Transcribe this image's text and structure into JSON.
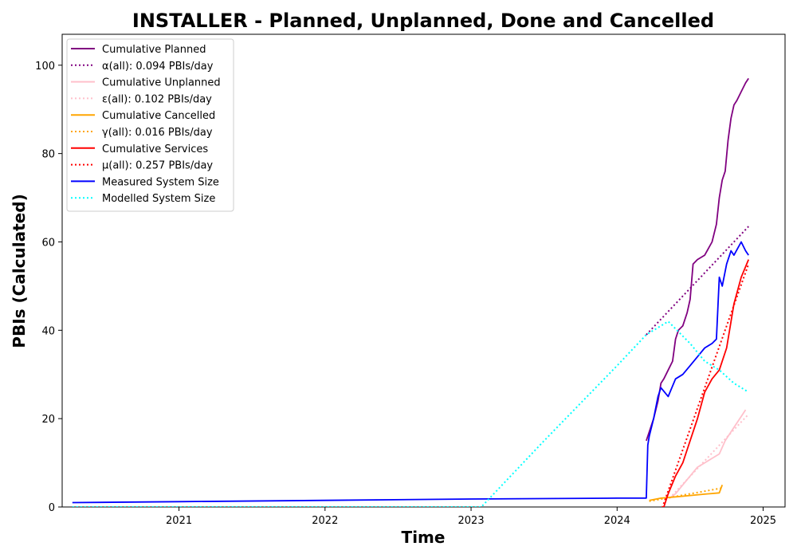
{
  "chart_data": {
    "type": "line",
    "title": "INSTALLER - Planned, Unplanned, Done  and Cancelled",
    "xlabel": "Time",
    "ylabel": "PBIs (Calculated)",
    "xlim": [
      2020.2,
      2025.15
    ],
    "ylim": [
      0,
      107
    ],
    "x_ticks": [
      2021,
      2022,
      2023,
      2024,
      2025
    ],
    "x_tick_labels": [
      "2021",
      "2022",
      "2023",
      "2024",
      "2025"
    ],
    "y_ticks": [
      0,
      20,
      40,
      60,
      80,
      100
    ],
    "y_tick_labels": [
      "0",
      "20",
      "40",
      "60",
      "80",
      "100"
    ],
    "grid": false,
    "legend_position": "top-left",
    "series": [
      {
        "name": "Cumulative Planned",
        "color": "#800080",
        "style": "solid",
        "x": [
          2024.2,
          2024.22,
          2024.25,
          2024.28,
          2024.3,
          2024.32,
          2024.35,
          2024.38,
          2024.4,
          2024.42,
          2024.45,
          2024.48,
          2024.5,
          2024.52,
          2024.55,
          2024.6,
          2024.65,
          2024.68,
          2024.7,
          2024.72,
          2024.74,
          2024.76,
          2024.78,
          2024.8,
          2024.82,
          2024.85,
          2024.88,
          2024.9
        ],
        "y": [
          15,
          17,
          20,
          24,
          28,
          29,
          31,
          33,
          38,
          40,
          41,
          44,
          47,
          55,
          56,
          57,
          60,
          64,
          70,
          74,
          76,
          83,
          88,
          91,
          92,
          94,
          96,
          97
        ]
      },
      {
        "name": "α(all): 0.094 PBIs/day",
        "color": "#800080",
        "style": "dotted",
        "x": [
          2024.2,
          2024.9
        ],
        "y": [
          39,
          63.5
        ]
      },
      {
        "name": "Cumulative Unplanned",
        "color": "#ffc0cb",
        "style": "solid",
        "x": [
          2024.36,
          2024.4,
          2024.45,
          2024.5,
          2024.55,
          2024.6,
          2024.65,
          2024.7,
          2024.74,
          2024.78,
          2024.82,
          2024.86,
          2024.88
        ],
        "y": [
          2,
          3,
          5,
          7,
          9,
          10,
          11,
          12,
          15,
          17,
          19,
          21,
          22
        ]
      },
      {
        "name": "ε(all): 0.102 PBIs/day",
        "color": "#ffc0cb",
        "style": "dotted",
        "x": [
          2024.36,
          2024.9
        ],
        "y": [
          2,
          21
        ]
      },
      {
        "name": "Cumulative Cancelled",
        "color": "#ffa500",
        "style": "solid",
        "x": [
          2024.22,
          2024.3,
          2024.4,
          2024.5,
          2024.6,
          2024.7,
          2024.72
        ],
        "y": [
          1.5,
          2,
          2.3,
          2.6,
          2.9,
          3.2,
          5
        ]
      },
      {
        "name": "γ(all): 0.016 PBIs/day",
        "color": "#ffa500",
        "style": "dotted",
        "x": [
          2024.22,
          2024.72
        ],
        "y": [
          1.3,
          4.3
        ]
      },
      {
        "name": "Cumulative Services",
        "color": "#ff0000",
        "style": "solid",
        "x": [
          2024.32,
          2024.35,
          2024.4,
          2024.45,
          2024.5,
          2024.55,
          2024.6,
          2024.65,
          2024.7,
          2024.75,
          2024.8,
          2024.85,
          2024.9
        ],
        "y": [
          0,
          3,
          7,
          10,
          15,
          20,
          26,
          29,
          31,
          36,
          46,
          52,
          56
        ]
      },
      {
        "name": "μ(all): 0.257 PBIs/day",
        "color": "#ff0000",
        "style": "dotted",
        "x": [
          2024.3,
          2024.9
        ],
        "y": [
          -1,
          55
        ]
      },
      {
        "name": "Measured System Size",
        "color": "#0000ff",
        "style": "solid",
        "x": [
          2020.27,
          2021.0,
          2022.0,
          2023.0,
          2024.0,
          2024.2,
          2024.21,
          2024.22,
          2024.25,
          2024.28,
          2024.3,
          2024.35,
          2024.4,
          2024.45,
          2024.5,
          2024.55,
          2024.6,
          2024.65,
          2024.68,
          2024.7,
          2024.72,
          2024.75,
          2024.78,
          2024.8,
          2024.85,
          2024.88,
          2024.9
        ],
        "y": [
          1,
          1.2,
          1.5,
          1.8,
          2,
          2,
          14,
          16,
          20,
          25,
          27,
          25,
          29,
          30,
          32,
          34,
          36,
          37,
          38,
          52,
          50,
          55,
          58,
          57,
          60,
          58,
          57
        ]
      },
      {
        "name": "Modelled System Size",
        "color": "#00ffff",
        "style": "dotted",
        "x": [
          2020.27,
          2023.07,
          2023.5,
          2024.0,
          2024.2,
          2024.35,
          2024.5,
          2024.6,
          2024.7,
          2024.8,
          2024.9
        ],
        "y": [
          0,
          0,
          15,
          32,
          39,
          42,
          37,
          33,
          31,
          28,
          26
        ]
      }
    ]
  }
}
